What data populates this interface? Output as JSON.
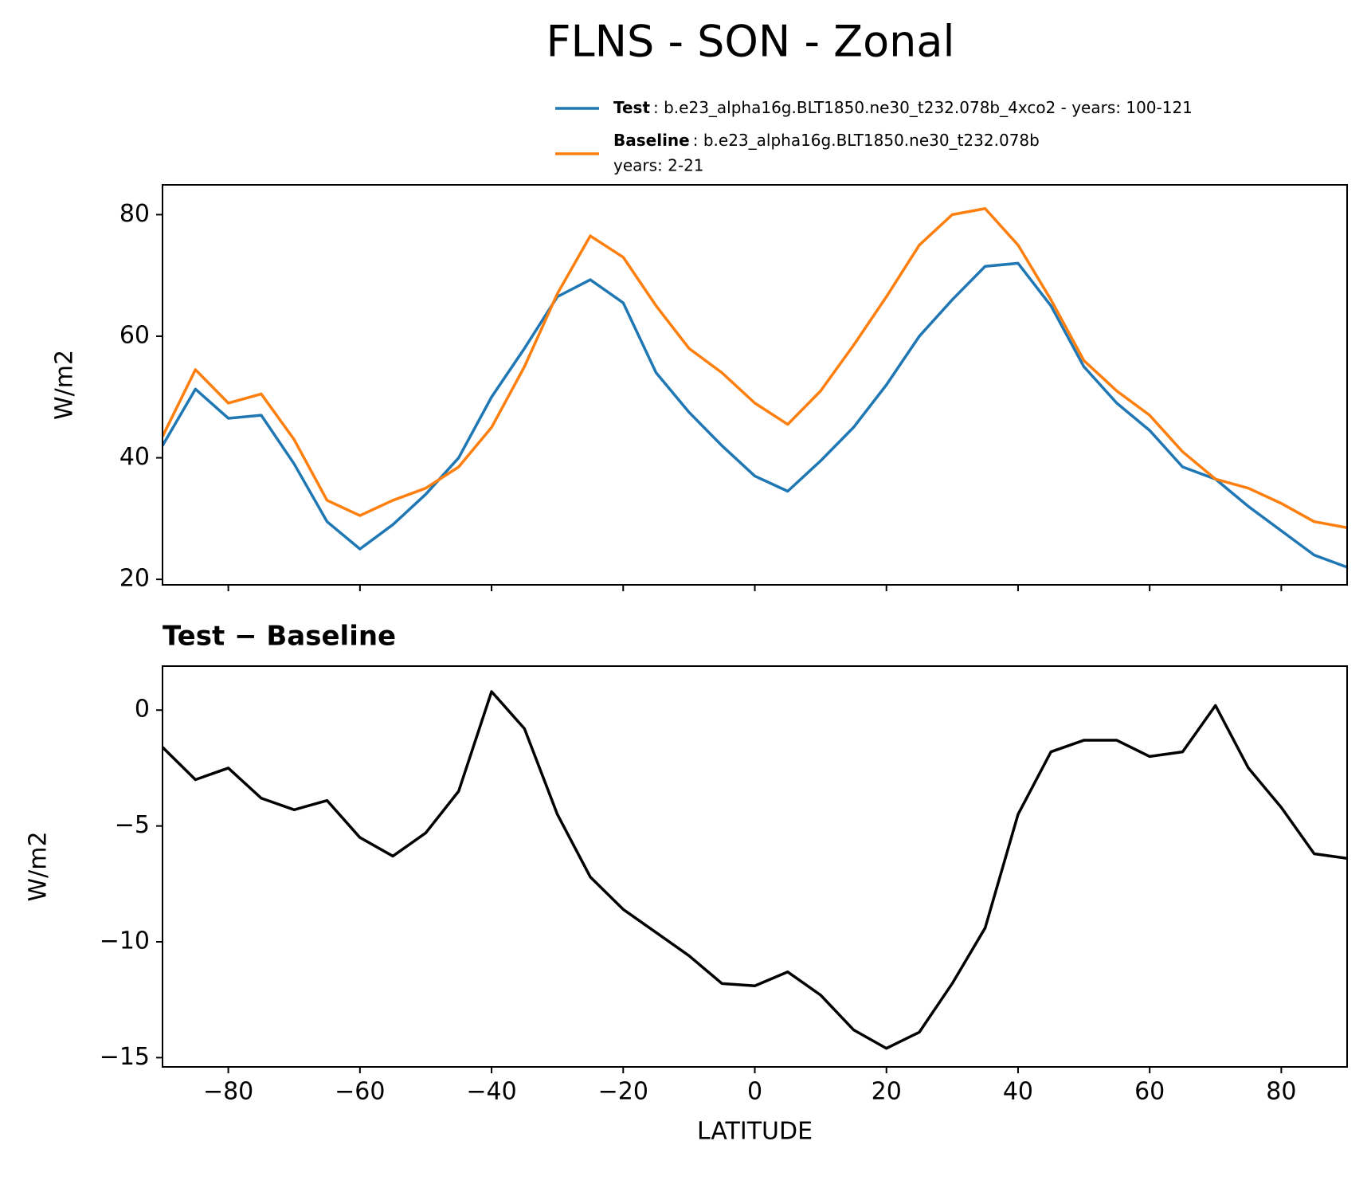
{
  "chart_data": [
    {
      "type": "line",
      "title": "FLNS - SON - Zonal",
      "ylabel": "W/m2",
      "ylim": [
        19.1,
        84.9
      ],
      "yticks": [
        20,
        40,
        60,
        80
      ],
      "xlim": [
        -90,
        90
      ],
      "x": [
        -90,
        -85,
        -80,
        -75,
        -70,
        -65,
        -60,
        -55,
        -50,
        -45,
        -40,
        -35,
        -30,
        -25,
        -20,
        -15,
        -10,
        -5,
        0,
        5,
        10,
        15,
        20,
        25,
        30,
        35,
        40,
        45,
        50,
        55,
        60,
        65,
        70,
        75,
        80,
        85,
        90
      ],
      "series": [
        {
          "name": "Test",
          "legend_text": ": b.e23_alpha16g.BLT1850.ne30_t232.078b_4xco2 - years: 100-121",
          "color": "#1f77b4",
          "values": [
            42,
            51.3,
            46.5,
            47,
            39,
            29.5,
            25,
            29,
            34,
            40,
            50,
            58,
            66.5,
            69.3,
            65.5,
            54,
            47.5,
            42,
            37,
            34.5,
            39.5,
            45,
            52,
            60,
            66,
            71.5,
            72,
            65,
            55,
            49,
            44.5,
            38.5,
            36.5,
            32,
            28,
            24,
            22
          ]
        },
        {
          "name": "Baseline",
          "legend_text": ": b.e23_alpha16g.BLT1850.ne30_t232.078b",
          "legend_text_2": "years: 2-21",
          "color": "#ff7f0e",
          "values": [
            43.5,
            54.5,
            49,
            50.5,
            43,
            33,
            30.5,
            33,
            35,
            38.5,
            45,
            55,
            67,
            76.5,
            73,
            65,
            58,
            54,
            49,
            45.5,
            51,
            58.5,
            66.5,
            75,
            80,
            81,
            75,
            66,
            56,
            51,
            47,
            41,
            36.5,
            35,
            32.5,
            29.5,
            28.5
          ]
        }
      ]
    },
    {
      "type": "line",
      "title": "Test − Baseline",
      "ylabel": "W/m2",
      "xlabel": "LATITUDE",
      "ylim": [
        -15.4,
        1.9
      ],
      "yticks": [
        0,
        {
          "value": -5,
          "label": "−5"
        },
        {
          "value": -10,
          "label": "−10"
        },
        {
          "value": -15,
          "label": "−15"
        }
      ],
      "xlim": [
        -90,
        90
      ],
      "xticks": [
        {
          "value": -80,
          "label": "−80"
        },
        {
          "value": -60,
          "label": "−60"
        },
        {
          "value": -40,
          "label": "−40"
        },
        {
          "value": -20,
          "label": "−20"
        },
        0,
        20,
        40,
        60,
        80
      ],
      "x": [
        -90,
        -85,
        -80,
        -75,
        -70,
        -65,
        -60,
        -55,
        -50,
        -45,
        -40,
        -35,
        -30,
        -25,
        -20,
        -15,
        -10,
        -5,
        0,
        5,
        10,
        15,
        20,
        25,
        30,
        35,
        40,
        45,
        50,
        55,
        60,
        65,
        70,
        75,
        80,
        85,
        90
      ],
      "series": [
        {
          "color": "#000000",
          "values": [
            -1.6,
            -3,
            -2.5,
            -3.8,
            -4.3,
            -3.9,
            -5.5,
            -6.3,
            -5.3,
            -3.5,
            0.8,
            -0.8,
            -4.5,
            -7.2,
            -8.6,
            -9.6,
            -10.6,
            -11.8,
            -11.9,
            -11.3,
            -12.3,
            -13.8,
            -14.6,
            -13.9,
            -11.8,
            -9.4,
            -4.5,
            -1.8,
            -1.3,
            -1.3,
            -2,
            -1.8,
            0.2,
            -2.5,
            -4.2,
            -6.2,
            -6.4
          ]
        }
      ]
    }
  ]
}
